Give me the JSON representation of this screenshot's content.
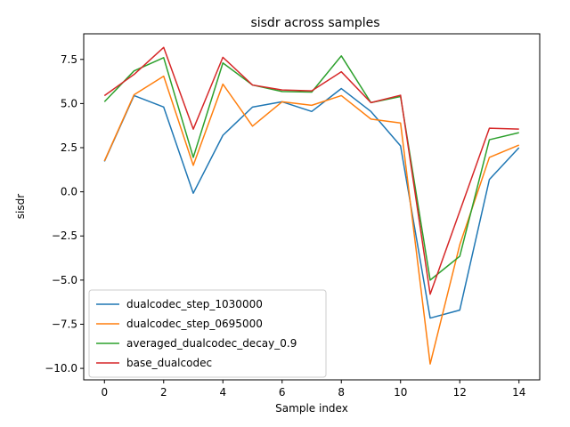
{
  "chart_data": {
    "type": "line",
    "title": "sisdr across samples",
    "xlabel": "Sample index",
    "ylabel": "sisdr",
    "x": [
      0,
      1,
      2,
      3,
      4,
      5,
      6,
      7,
      8,
      9,
      10,
      11,
      12,
      13,
      14
    ],
    "xlim": [
      -0.7,
      14.7
    ],
    "ylim": [
      -10.65,
      8.95
    ],
    "xticks": [
      0,
      2,
      4,
      6,
      8,
      10,
      12,
      14
    ],
    "xtick_labels": [
      "0",
      "2",
      "4",
      "6",
      "8",
      "10",
      "12",
      "14"
    ],
    "yticks": [
      -10.0,
      -7.5,
      -5.0,
      -2.5,
      0.0,
      2.5,
      5.0,
      7.5
    ],
    "ytick_labels": [
      "−10.0",
      "−7.5",
      "−5.0",
      "−2.5",
      "0.0",
      "2.5",
      "5.0",
      "7.5"
    ],
    "grid": false,
    "legend_position": "lower-left",
    "series": [
      {
        "name": "dualcodec_step_1030000",
        "color": "#1f77b4",
        "values": [
          1.72,
          5.45,
          4.8,
          -0.08,
          3.2,
          4.8,
          5.1,
          4.55,
          5.85,
          4.55,
          2.6,
          -7.15,
          -6.7,
          0.7,
          2.5
        ]
      },
      {
        "name": "dualcodec_step_0695000",
        "color": "#ff7f0e",
        "values": [
          1.75,
          5.5,
          6.55,
          1.5,
          6.1,
          3.72,
          5.1,
          4.9,
          5.45,
          4.12,
          3.9,
          -9.75,
          -3.0,
          1.95,
          2.65
        ]
      },
      {
        "name": "averaged_dualcodec_decay_0.9",
        "color": "#2ca02c",
        "values": [
          5.1,
          6.85,
          7.6,
          1.95,
          7.3,
          6.05,
          5.68,
          5.65,
          7.7,
          5.05,
          5.4,
          -5.0,
          -3.65,
          2.95,
          3.35
        ]
      },
      {
        "name": "base_dualcodec",
        "color": "#d62728",
        "values": [
          5.45,
          6.65,
          8.18,
          3.55,
          7.62,
          6.05,
          5.77,
          5.72,
          6.8,
          5.05,
          5.47,
          -5.8,
          -1.1,
          3.6,
          3.55
        ]
      }
    ]
  }
}
